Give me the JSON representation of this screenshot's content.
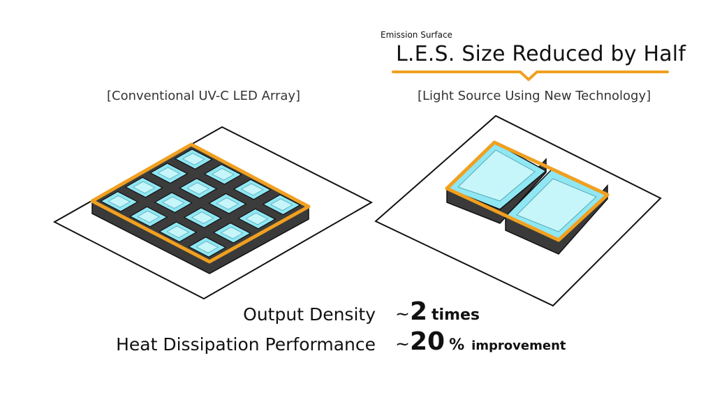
{
  "left_panel": {
    "caption": "[Conventional UV-C LED Array]"
  },
  "right_panel": {
    "caption": "[Light Source Using New Technology]",
    "emission_label": "Emission Surface",
    "title": "L.E.S. Size Reduced by Half"
  },
  "stats": {
    "density": {
      "label": "Output Density",
      "prefix": "~",
      "value": "2",
      "unit": "times"
    },
    "heat": {
      "label": "Heat Dissipation Performance",
      "prefix": "~",
      "value": "20",
      "pct": "%",
      "unit": "improvement"
    }
  },
  "colors": {
    "accent": "#F0A020",
    "cell": "#8FE7F3",
    "cell_inner": "#C6F5FA",
    "block": "#4A4A4A",
    "block_dark": "#2E2E2E",
    "board": "#FFFFFF"
  },
  "grid": {
    "rows": 4,
    "cols": 4
  },
  "new_chips": 2
}
